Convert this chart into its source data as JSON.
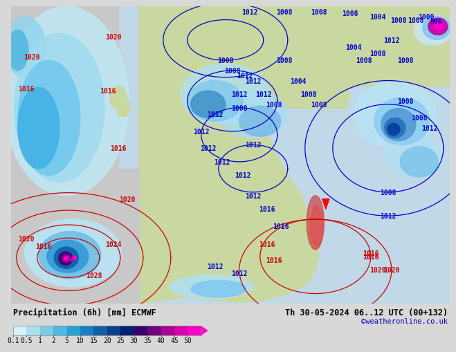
{
  "title_left": "Precipitation (6h) [mm] ECMWF",
  "title_right": "Th 30-05-2024 06..12 UTC (00+132)",
  "credit": "©weatheronline.co.uk",
  "colorbar_values": [
    0.1,
    0.5,
    1,
    2,
    5,
    10,
    15,
    20,
    25,
    30,
    35,
    40,
    45,
    50
  ],
  "colorbar_colors": [
    "#d4f0f8",
    "#a8e0f0",
    "#7ccce8",
    "#50b8e0",
    "#28a0d4",
    "#1880c0",
    "#1060a8",
    "#084090",
    "#042070",
    "#380068",
    "#700080",
    "#a80090",
    "#d800a8",
    "#ff00cc"
  ],
  "bg_color": "#d8d8d8",
  "land_color": "#c8d8a0",
  "sea_color": "#c0d8e8",
  "left_ocean_color": "#c8c8c8",
  "title_color": "#000000",
  "credit_color": "#0000bb",
  "font_size_title": 8.5,
  "font_size_credit": 7.5,
  "font_size_ticks": 7,
  "font_size_isobar": 7,
  "isobar_blue": "#0000cc",
  "isobar_red": "#cc0000",
  "prec_colors": {
    "0.1": "#d4f0f8",
    "0.5": "#b8e8f4",
    "1": "#90d8f0",
    "2": "#60c0e8",
    "5": "#30a8e0",
    "10": "#1888cc",
    "15": "#1068b0",
    "20": "#084898",
    "25": "#062880",
    "30": "#380068",
    "35": "#680080",
    "40": "#980090",
    "45": "#c800a8",
    "50": "#ff00cc"
  }
}
